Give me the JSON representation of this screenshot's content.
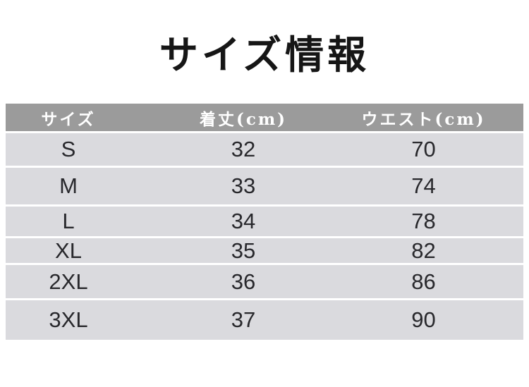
{
  "page": {
    "title": "サイズ情報",
    "background_color": "#ffffff"
  },
  "size_table": {
    "columns": [
      {
        "key": "size",
        "label": "サイズ"
      },
      {
        "key": "length_cm",
        "label": "着丈(cm)"
      },
      {
        "key": "waist_cm",
        "label": "ウエスト(cm)"
      }
    ],
    "rows": [
      {
        "size": "S",
        "length_cm": "32",
        "waist_cm": "70"
      },
      {
        "size": "M",
        "length_cm": "33",
        "waist_cm": "74"
      },
      {
        "size": "L",
        "length_cm": "34",
        "waist_cm": "78"
      },
      {
        "size": "XL",
        "length_cm": "35",
        "waist_cm": "82"
      },
      {
        "size": "2XL",
        "length_cm": "36",
        "waist_cm": "86"
      },
      {
        "size": "3XL",
        "length_cm": "37",
        "waist_cm": "90"
      }
    ],
    "colors": {
      "header_background": "#9b9b9b",
      "header_text": "#ffffff",
      "row_background": "#dadade",
      "row_text": "#28282c",
      "separator": "#ffffff",
      "title_text": "#161616"
    }
  }
}
